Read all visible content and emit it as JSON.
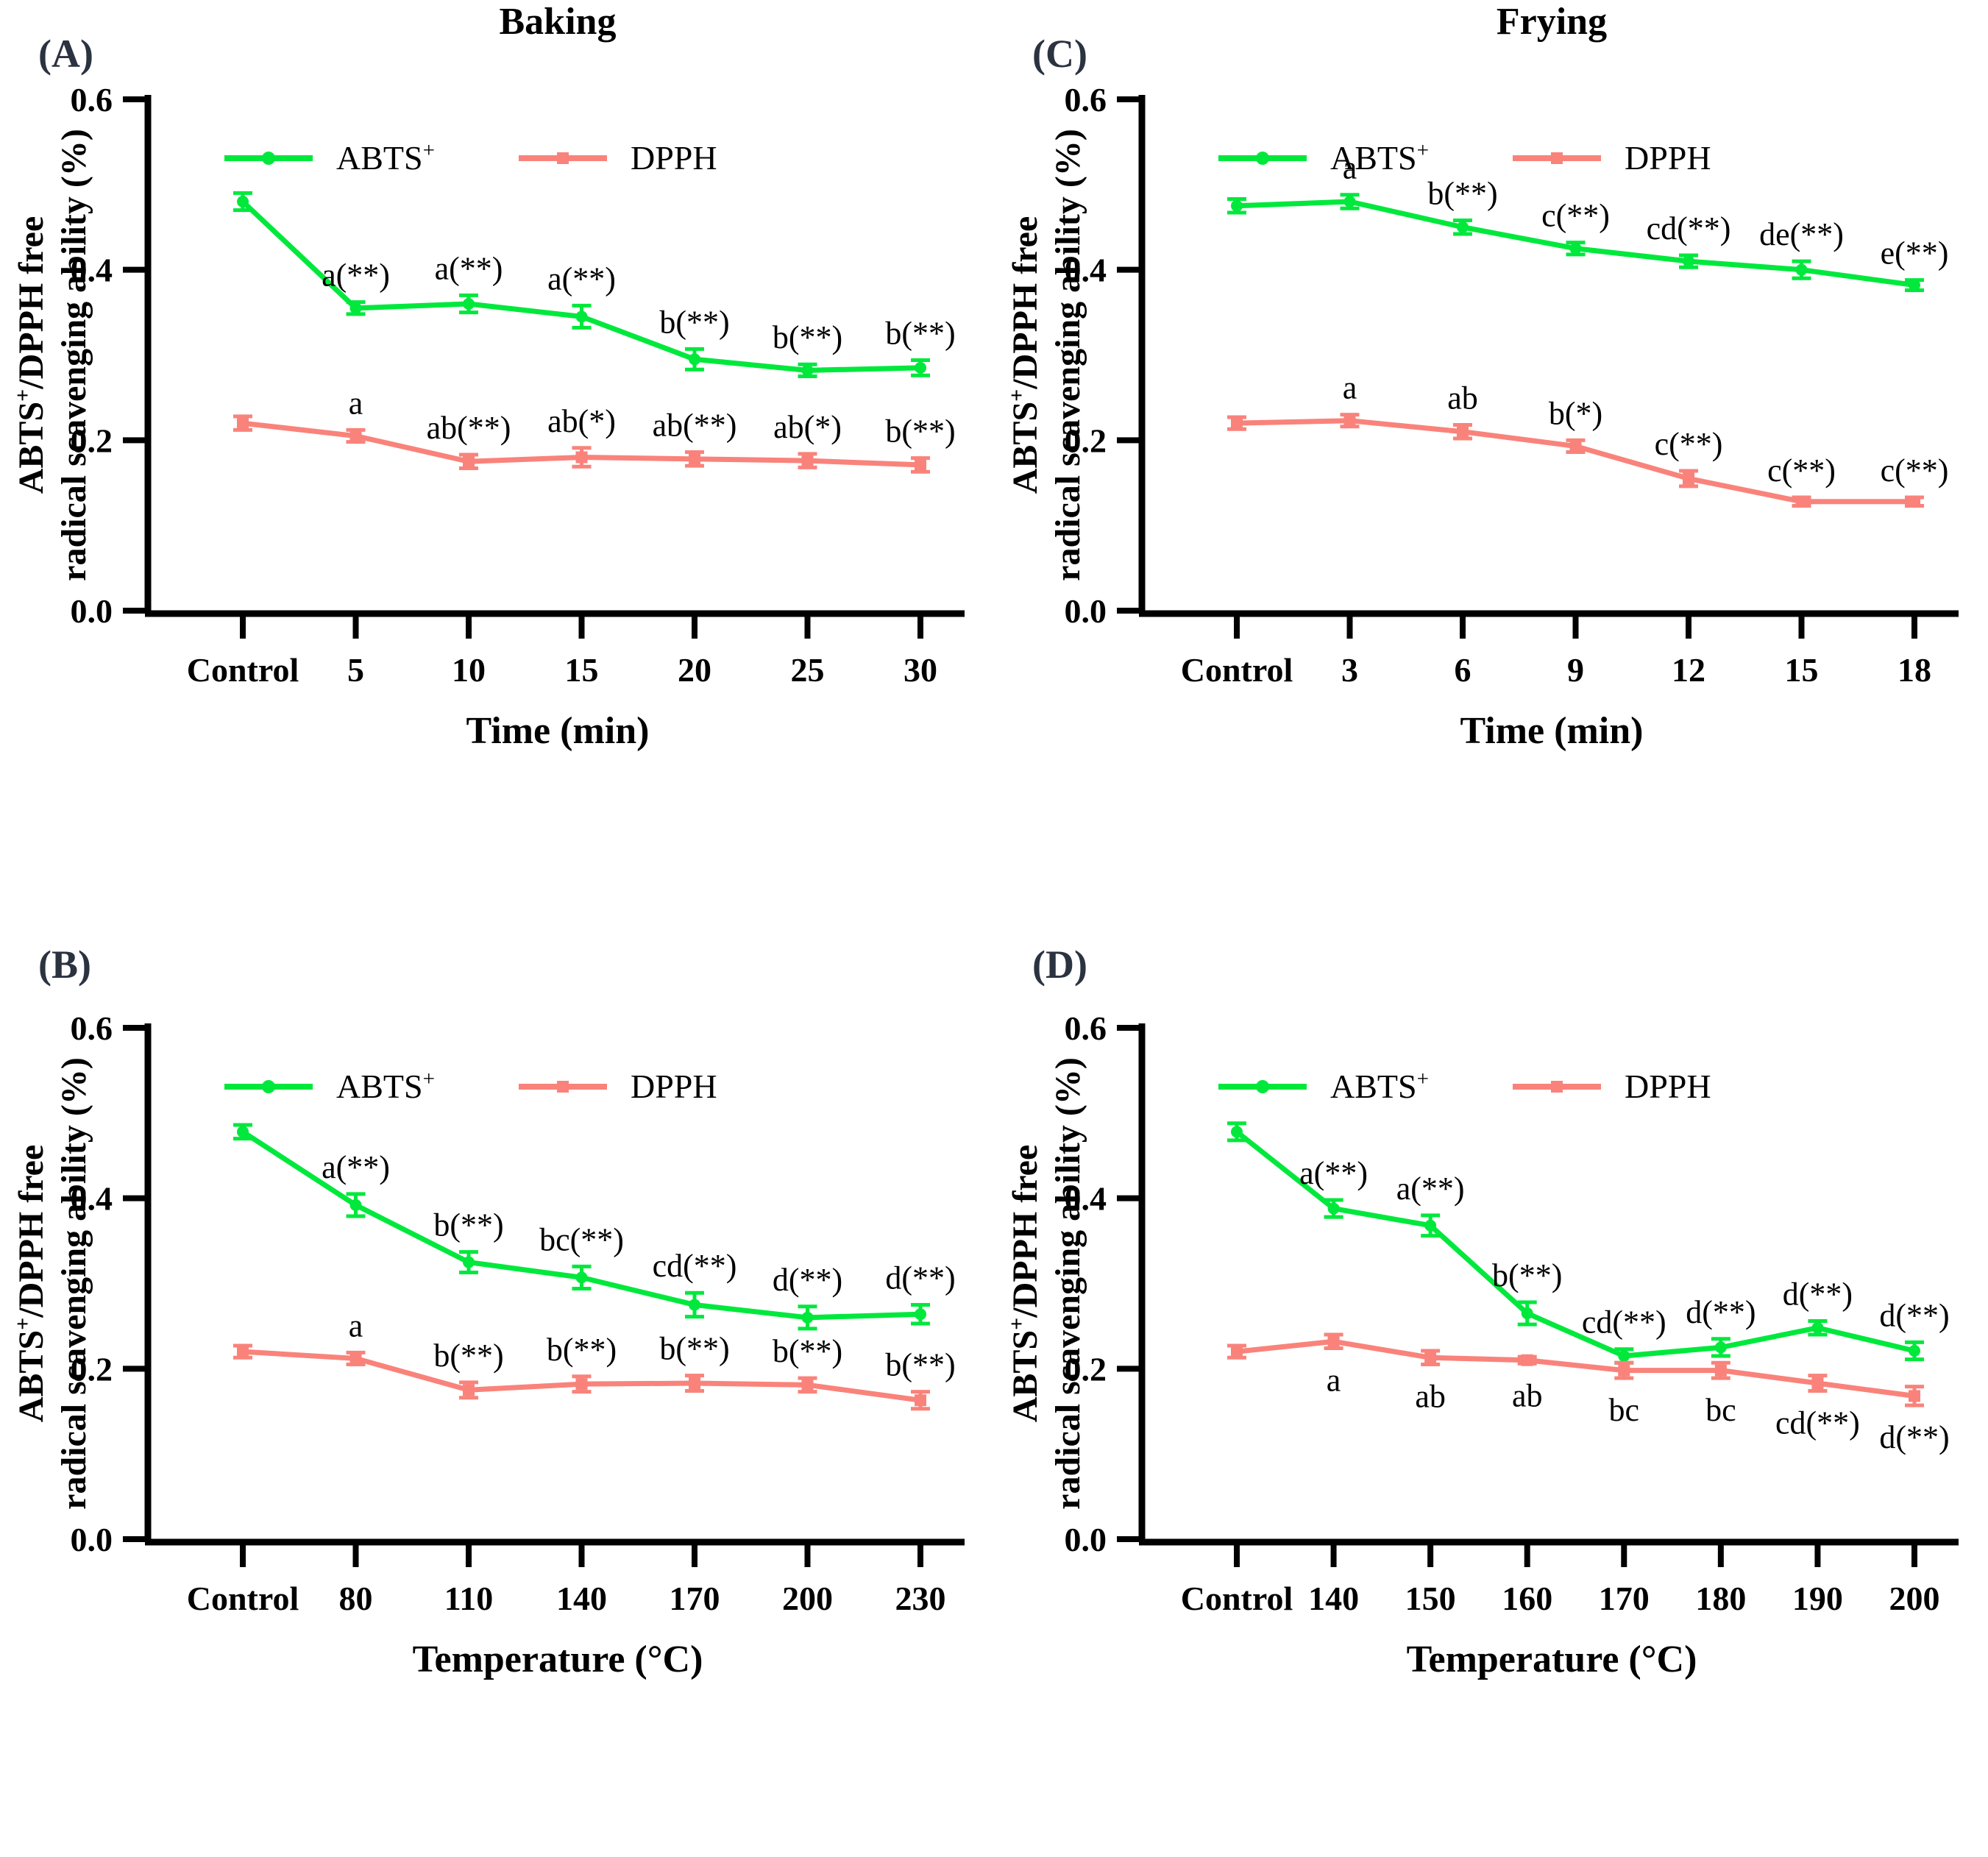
{
  "figure": {
    "background": "#ffffff",
    "panel_letter_color": "#2B3240",
    "axis_color": "#000000",
    "abts_color": "#00E83C",
    "dpph_color": "#F9837B"
  },
  "chart_data": [
    {
      "id": "A",
      "panel_label": "(A)",
      "title": "Baking",
      "type": "line",
      "x_label": "Time (min)",
      "y_label_lines": [
        "ABTS{+}/DPPH free",
        "radical scavenging ability (%)"
      ],
      "ylim": [
        0,
        0.6
      ],
      "yticks": [
        "0.0",
        "0.2",
        "0.4",
        "0.6"
      ],
      "legend_position": "top-left-inside",
      "grid": false,
      "categories": [
        "Control",
        "5",
        "10",
        "15",
        "20",
        "25",
        "30"
      ],
      "series": [
        {
          "name": "ABTS{+}",
          "color": "#00E83C",
          "marker": "circle",
          "label_side": "above",
          "values": [
            0.48,
            0.355,
            0.36,
            0.345,
            0.295,
            0.282,
            0.285
          ],
          "errors": [
            0.01,
            0.007,
            0.01,
            0.013,
            0.012,
            0.007,
            0.009
          ],
          "annotations": [
            "",
            "a(**)",
            "a(**)",
            "a(**)",
            "b(**)",
            "b(**)",
            "b(**)"
          ]
        },
        {
          "name": "DPPH",
          "color": "#F9837B",
          "marker": "square",
          "label_side": "above",
          "values": [
            0.22,
            0.205,
            0.175,
            0.18,
            0.178,
            0.176,
            0.171
          ],
          "errors": [
            0.008,
            0.007,
            0.008,
            0.011,
            0.008,
            0.008,
            0.008
          ],
          "annotations": [
            "",
            "a",
            "ab(**)",
            "ab(*)",
            "ab(**)",
            "ab(*)",
            "b(**)"
          ]
        }
      ]
    },
    {
      "id": "C",
      "panel_label": "(C)",
      "title": "Frying",
      "type": "line",
      "x_label": "Time (min)",
      "y_label_lines": [
        "ABTS{+}/DPPH free",
        "radical scavenging ability (%)"
      ],
      "ylim": [
        0,
        0.6
      ],
      "yticks": [
        "0.0",
        "0.2",
        "0.4",
        "0.6"
      ],
      "legend_position": "top-left-inside",
      "grid": false,
      "categories": [
        "Control",
        "3",
        "6",
        "9",
        "12",
        "15",
        "18"
      ],
      "series": [
        {
          "name": "ABTS{+}",
          "color": "#00E83C",
          "marker": "circle",
          "label_side": "above",
          "values": [
            0.475,
            0.48,
            0.45,
            0.425,
            0.41,
            0.4,
            0.382
          ],
          "errors": [
            0.008,
            0.008,
            0.008,
            0.007,
            0.007,
            0.01,
            0.006
          ],
          "annotations": [
            "",
            "a",
            "b(**)",
            "c(**)",
            "cd(**)",
            "de(**)",
            "e(**)"
          ]
        },
        {
          "name": "DPPH",
          "color": "#F9837B",
          "marker": "square",
          "label_side": "above",
          "values": [
            0.22,
            0.223,
            0.21,
            0.193,
            0.155,
            0.128,
            0.128
          ],
          "errors": [
            0.007,
            0.007,
            0.008,
            0.007,
            0.009,
            0.005,
            0.005
          ],
          "annotations": [
            "",
            "a",
            "ab",
            "b(*)",
            "c(**)",
            "c(**)",
            "c(**)"
          ]
        }
      ]
    },
    {
      "id": "B",
      "panel_label": "(B)",
      "title": "",
      "type": "line",
      "x_label": "Temperature (°C)",
      "y_label_lines": [
        "ABTS{+}/DPPH free",
        "radical scavenging ability (%)"
      ],
      "ylim": [
        0,
        0.6
      ],
      "yticks": [
        "0.0",
        "0.2",
        "0.4",
        "0.6"
      ],
      "legend_position": "top-left-inside",
      "grid": false,
      "categories": [
        "Control",
        "80",
        "110",
        "140",
        "170",
        "200",
        "230"
      ],
      "series": [
        {
          "name": "ABTS{+}",
          "color": "#00E83C",
          "marker": "circle",
          "label_side": "above",
          "values": [
            0.478,
            0.392,
            0.325,
            0.307,
            0.275,
            0.26,
            0.264
          ],
          "errors": [
            0.008,
            0.013,
            0.012,
            0.013,
            0.014,
            0.013,
            0.011
          ],
          "annotations": [
            "",
            "a(**)",
            "b(**)",
            "bc(**)",
            "cd(**)",
            "d(**)",
            "d(**)"
          ]
        },
        {
          "name": "DPPH",
          "color": "#F9837B",
          "marker": "square",
          "label_side": "above",
          "values": [
            0.22,
            0.212,
            0.175,
            0.182,
            0.183,
            0.181,
            0.163
          ],
          "errors": [
            0.007,
            0.007,
            0.009,
            0.009,
            0.009,
            0.008,
            0.01
          ],
          "annotations": [
            "",
            "a",
            "b(**)",
            "b(**)",
            "b(**)",
            "b(**)",
            "b(**)"
          ]
        }
      ]
    },
    {
      "id": "D",
      "panel_label": "(D)",
      "title": "",
      "type": "line",
      "x_label": "Temperature (°C)",
      "y_label_lines": [
        "ABTS{+}/DPPH free",
        "radical scavenging ability (%)"
      ],
      "ylim": [
        0,
        0.6
      ],
      "yticks": [
        "0.0",
        "0.2",
        "0.4",
        "0.6"
      ],
      "legend_position": "top-left-inside",
      "grid": false,
      "categories": [
        "Control",
        "140",
        "150",
        "160",
        "170",
        "180",
        "190",
        "200"
      ],
      "series": [
        {
          "name": "ABTS{+}",
          "color": "#00E83C",
          "marker": "circle",
          "label_side": "above",
          "values": [
            0.478,
            0.388,
            0.368,
            0.265,
            0.215,
            0.225,
            0.248,
            0.221
          ],
          "errors": [
            0.01,
            0.01,
            0.012,
            0.013,
            0.008,
            0.01,
            0.008,
            0.01
          ],
          "annotations": [
            "",
            "a(**)",
            "a(**)",
            "b(**)",
            "cd(**)",
            "d(**)",
            "d(**)",
            "d(**)"
          ]
        },
        {
          "name": "DPPH",
          "color": "#F9837B",
          "marker": "square",
          "label_side": "below",
          "values": [
            0.22,
            0.232,
            0.213,
            0.21,
            0.198,
            0.198,
            0.183,
            0.168
          ],
          "errors": [
            0.007,
            0.008,
            0.008,
            0.004,
            0.009,
            0.009,
            0.009,
            0.011
          ],
          "annotations": [
            "",
            "a",
            "ab",
            "ab",
            "bc",
            "bc",
            "cd(**)",
            "d(**)"
          ]
        }
      ]
    }
  ]
}
